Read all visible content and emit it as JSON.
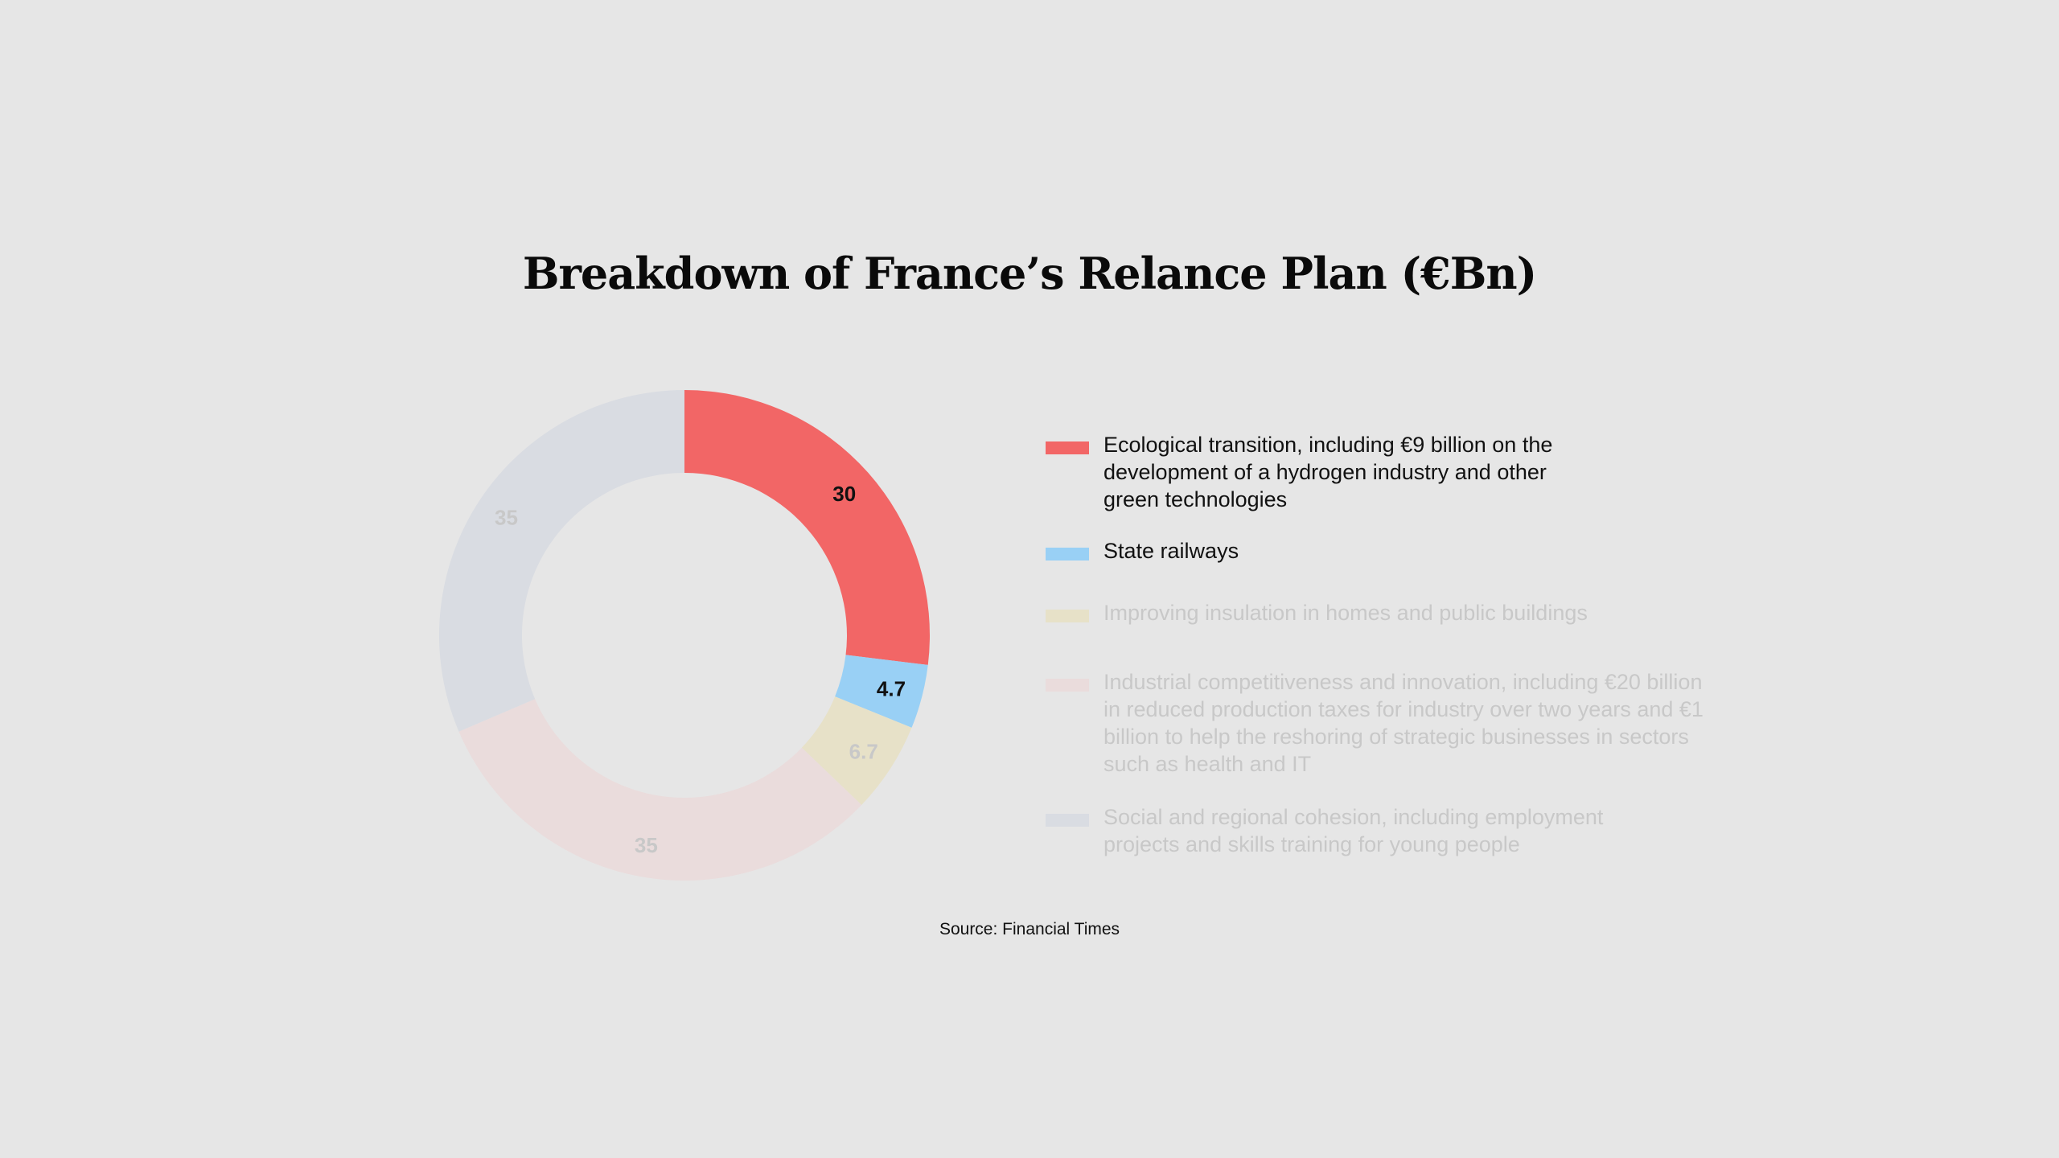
{
  "chart_data": {
    "type": "pie",
    "title": "Breakdown of France’s Relance Plan (€Bn)",
    "donut": true,
    "slices": [
      {
        "label": "Ecological transition, including €9 billion on the development of a hydrogen industry and other green technologies",
        "value": 30,
        "value_label": "30",
        "color": "#f26666",
        "highlighted": true
      },
      {
        "label": "State railways",
        "value": 4.7,
        "value_label": "4.7",
        "color": "#99d0f5",
        "highlighted": true
      },
      {
        "label": "Improving insulation in homes and public buildings",
        "value": 6.7,
        "value_label": "6.7",
        "color": "#e7e1c8",
        "highlighted": false
      },
      {
        "label": "Industrial competitiveness and innovation, including €20 billion in reduced production taxes for industry over two years and €1 billion to help the reshoring of strategic businesses in sectors such as health and IT",
        "value": 35,
        "value_label": "35",
        "color": "#eadcdc",
        "highlighted": false
      },
      {
        "label": "Social and regional cohesion, including employment projects and skills training for young people",
        "value": 35,
        "value_label": "35",
        "color": "#d9dce2",
        "highlighted": false
      }
    ],
    "legend_position": "right"
  },
  "colors": {
    "background": "#e6e6e6",
    "highlight_text": "#111111",
    "muted_text": "#c8c8c8"
  },
  "source": "Source: Financial Times"
}
